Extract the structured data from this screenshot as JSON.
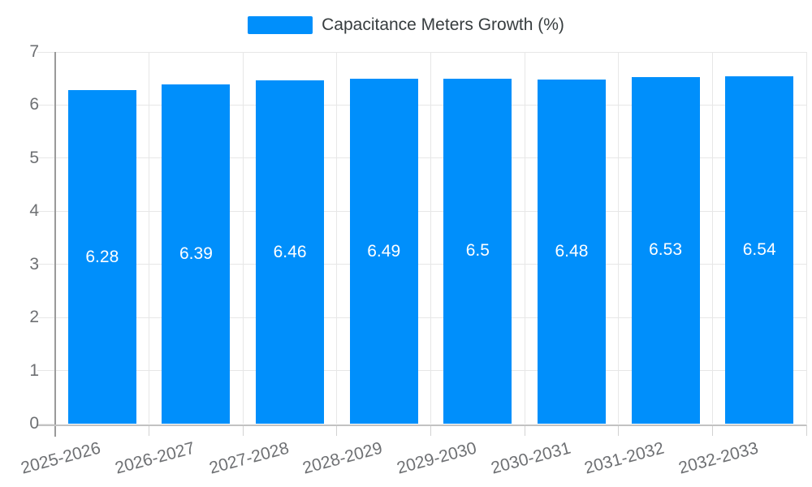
{
  "chart_data": {
    "type": "bar",
    "title": "Capacitance Meters Growth (%)",
    "categories": [
      "2025-2026",
      "2026-2027",
      "2027-2028",
      "2028-2029",
      "2029-2030",
      "2030-2031",
      "2031-2032",
      "2032-2033"
    ],
    "values": [
      6.28,
      6.39,
      6.46,
      6.49,
      6.5,
      6.48,
      6.53,
      6.54
    ],
    "xlabel": "",
    "ylabel": "",
    "ylim": [
      0,
      7
    ],
    "y_ticks": [
      0,
      1,
      2,
      3,
      4,
      5,
      6,
      7
    ],
    "grid": true,
    "legend_position": "top",
    "colors": {
      "bar": "#008FFB",
      "value_label": "#ffffff",
      "axis_label": "#6e7073",
      "legend_text": "#373d3f",
      "gridline": "#e7e7e7",
      "x_axis_line": "#c2c2c2",
      "y_axis_line": "#9a9a9a",
      "background": "#ffffff"
    }
  }
}
